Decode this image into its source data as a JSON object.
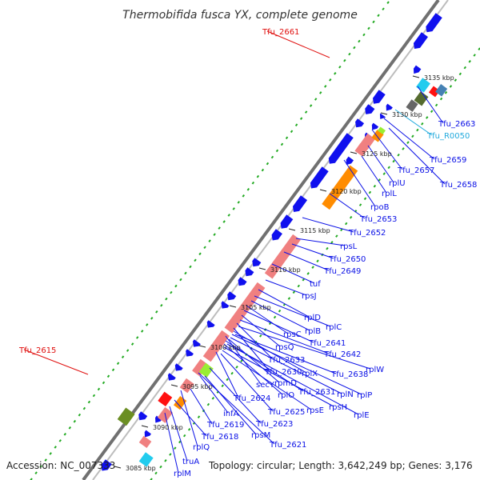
{
  "title": "Thermobifida fusca YX, complete genome",
  "footer": {
    "accession": "Accession: NC_007333",
    "summary": "Topology: circular; Length: 3,642,249 bp; Genes: 3,176"
  },
  "colors": {
    "blue": "#0a10e6",
    "red_label": "#e0100f",
    "cyan_label": "#22aadd",
    "gene_cds": "#1010ee",
    "rrna": "#f08080",
    "orange": "#ff8c00",
    "backbone": "#707070",
    "gc_dots": "#22aa22"
  },
  "kbp_ticks": [
    "3135 kbp",
    "3130 kbp",
    "3125 kbp",
    "3120 kbp",
    "3115 kbp",
    "3110 kbp",
    "3105 kbp",
    "3100 kbp",
    "3095 kbp",
    "3090 kbp",
    "3085 kbp"
  ],
  "gene_labels": [
    "Tfu_2661",
    "Tfu_2663",
    "Tfu_R0050",
    "Tfu_2659",
    "Tfu_2657",
    "Tfu_2658",
    "rplU",
    "rplL",
    "rpoB",
    "Tfu_2653",
    "Tfu_2652",
    "rpsL",
    "Tfu_2650",
    "Tfu_2649",
    "tuf",
    "rpsJ",
    "rplD",
    "rplC",
    "rplB",
    "rpsC",
    "Tfu_2641",
    "rpsQ",
    "Tfu_2642",
    "Tfu_2633",
    "rplW",
    "Tfu_2630",
    "rplX",
    "Tfu_2638",
    "secY",
    "rpmD",
    "rplO",
    "Tfu_2631",
    "rplN",
    "rplP",
    "Tfu_2624",
    "Tfu_2625",
    "rpsE",
    "rpsH",
    "rplE",
    "infA",
    "Tfu_2623",
    "Tfu_2619",
    "rpsM",
    "rplQ",
    "Tfu_2618",
    "Tfu_2621",
    "Tfu_2615",
    "truA",
    "rplM"
  ]
}
